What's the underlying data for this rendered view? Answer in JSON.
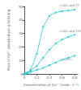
{
  "chart_data": {
    "type": "line",
    "xlabel": "Concentration of Cu²⁺ (mole · L⁻¹)",
    "ylabel": "Mass of Cu²⁺ adsorbed per g Al₂O₃/mg",
    "xlim": [
      0,
      0.85
    ],
    "ylim": [
      0,
      50
    ],
    "xticks": [
      0,
      0.2,
      0.4,
      0.6,
      0.8
    ],
    "yticks": [
      0,
      10,
      20,
      30,
      40,
      50
    ],
    "grid": false,
    "color": "#22ccdd",
    "marker": "square",
    "series": [
      {
        "x": [
          0,
          0.02,
          0.05,
          0.1,
          0.2,
          0.3,
          0.4,
          0.5,
          0.6,
          0.7,
          0.8
        ],
        "values": [
          0,
          0.3,
          0.8,
          1.5,
          3.0,
          4.5,
          6.5,
          8.5,
          10.5,
          12.0,
          13.5
        ]
      },
      {
        "x": [
          0,
          0.02,
          0.05,
          0.1,
          0.2,
          0.3,
          0.4,
          0.5,
          0.6,
          0.7,
          0.8
        ],
        "values": [
          0,
          0.3,
          1.0,
          2.5,
          6.0,
          12.0,
          18.0,
          22.5,
          25.5,
          27.5,
          29.0
        ]
      },
      {
        "x": [
          0,
          0.02,
          0.05,
          0.1,
          0.2,
          0.3,
          0.4,
          0.5,
          0.6,
          0.7,
          0.8
        ],
        "values": [
          0,
          0.3,
          1.0,
          3.0,
          15.0,
          35.0,
          43.0,
          45.5,
          46.5,
          47.0,
          47.5
        ]
      }
    ],
    "annotations": [
      {
        "text": "CuSO₄",
        "x": 0.62,
        "y": 9.5
      },
      {
        "text": "CuSO₄ and TEPA",
        "x": 0.56,
        "y": 30.5
      },
      {
        "text": "CuSO₄ and TT",
        "x": 0.56,
        "y": 49.5
      }
    ]
  }
}
